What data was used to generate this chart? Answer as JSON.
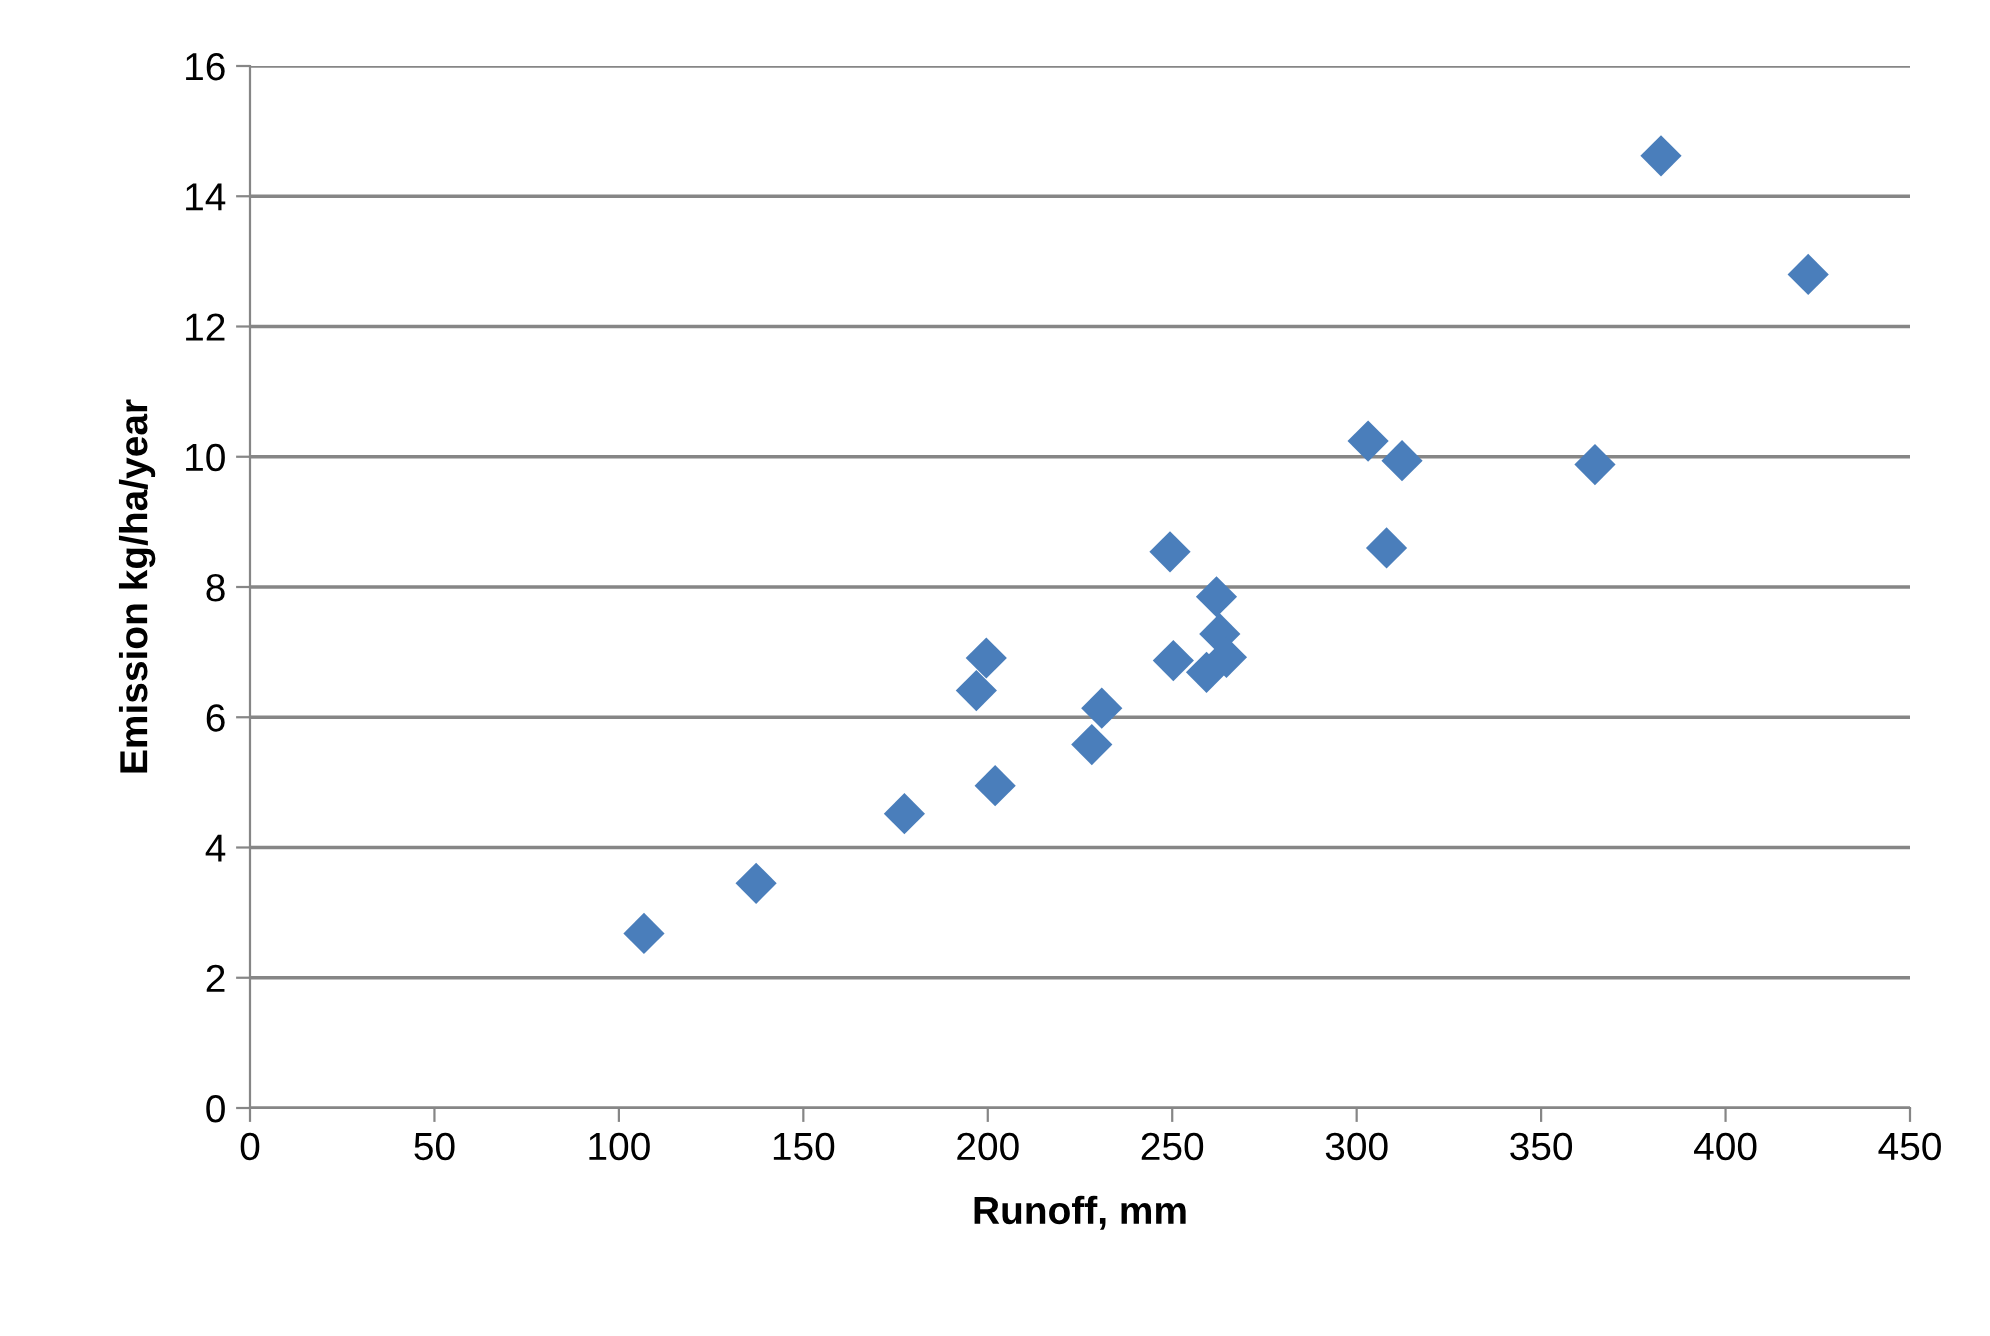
{
  "chart_data": {
    "type": "scatter",
    "xlabel": "Runoff, mm",
    "ylabel": "Emission kg/ha/year",
    "x": [
      106.8,
      137.2,
      177.4,
      196.9,
      199.6,
      202,
      228.2,
      230.9,
      249.4,
      250.3,
      259.3,
      262,
      262.9,
      264.7,
      303.1,
      308.1,
      312.3,
      364.6,
      382.5,
      422.4
    ],
    "values": [
      2.68,
      3.45,
      4.52,
      6.41,
      6.91,
      4.95,
      5.58,
      6.14,
      8.54,
      6.87,
      6.69,
      7.85,
      7.28,
      6.92,
      10.24,
      8.6,
      9.94,
      9.88,
      14.62,
      12.8
    ],
    "color": "#4a7ebb",
    "marker": "diamond",
    "xlim": [
      0,
      450
    ],
    "xticks": [
      0,
      50,
      100,
      150,
      200,
      250,
      300,
      350,
      400,
      450
    ],
    "ylim": [
      0,
      16
    ],
    "yticks": [
      0,
      2,
      4,
      6,
      8,
      10,
      12,
      14,
      16
    ],
    "grid": "y",
    "legend": false
  }
}
